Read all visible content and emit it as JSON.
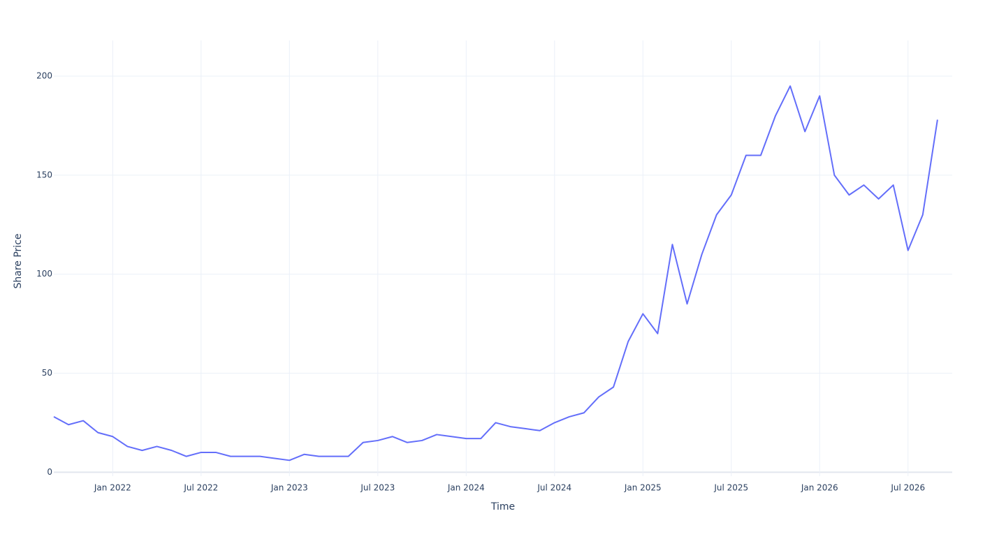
{
  "chart_data": {
    "type": "line",
    "x_label": "Time",
    "y_label": "Share Price",
    "x": [
      "2021-09",
      "2021-10",
      "2021-11",
      "2021-12",
      "2022-01",
      "2022-02",
      "2022-03",
      "2022-04",
      "2022-05",
      "2022-06",
      "2022-07",
      "2022-08",
      "2022-09",
      "2022-10",
      "2022-11",
      "2022-12",
      "2023-01",
      "2023-02",
      "2023-03",
      "2023-04",
      "2023-05",
      "2023-06",
      "2023-07",
      "2023-08",
      "2023-09",
      "2023-10",
      "2023-11",
      "2023-12",
      "2024-01",
      "2024-02",
      "2024-03",
      "2024-04",
      "2024-05",
      "2024-06",
      "2024-07",
      "2024-08",
      "2024-09",
      "2024-10",
      "2024-11",
      "2024-12",
      "2025-01",
      "2025-02",
      "2025-03",
      "2025-04",
      "2025-05",
      "2025-06",
      "2025-07",
      "2025-08",
      "2025-09",
      "2025-10",
      "2025-11",
      "2025-12",
      "2026-01",
      "2026-02",
      "2026-03",
      "2026-04",
      "2026-05",
      "2026-06",
      "2026-07",
      "2026-08",
      "2026-09"
    ],
    "series": [
      {
        "name": "Share Price",
        "color": "#636efa",
        "values": [
          28,
          24,
          26,
          20,
          18,
          13,
          11,
          13,
          11,
          8,
          10,
          10,
          8,
          8,
          8,
          7,
          6,
          9,
          8,
          8,
          8,
          15,
          16,
          18,
          15,
          16,
          19,
          18,
          17,
          17,
          25,
          23,
          22,
          21,
          25,
          28,
          30,
          38,
          43,
          66,
          80,
          70,
          115,
          85,
          110,
          130,
          140,
          160,
          160,
          180,
          195,
          172,
          190,
          150,
          140,
          145,
          138,
          145,
          112,
          130,
          178
        ]
      }
    ],
    "xlim": [
      "2021-09",
      "2026-10"
    ],
    "xticks": [
      {
        "value": "2022-01",
        "label": "Jan 2022"
      },
      {
        "value": "2022-07",
        "label": "Jul 2022"
      },
      {
        "value": "2023-01",
        "label": "Jan 2023"
      },
      {
        "value": "2023-07",
        "label": "Jul 2023"
      },
      {
        "value": "2024-01",
        "label": "Jan 2024"
      },
      {
        "value": "2024-07",
        "label": "Jul 2024"
      },
      {
        "value": "2025-01",
        "label": "Jan 2025"
      },
      {
        "value": "2025-07",
        "label": "Jul 2025"
      },
      {
        "value": "2026-01",
        "label": "Jan 2026"
      },
      {
        "value": "2026-07",
        "label": "Jul 2026"
      }
    ],
    "ylim": [
      -2,
      218
    ],
    "yticks": [
      0,
      50,
      100,
      150,
      200
    ],
    "grid": true
  }
}
